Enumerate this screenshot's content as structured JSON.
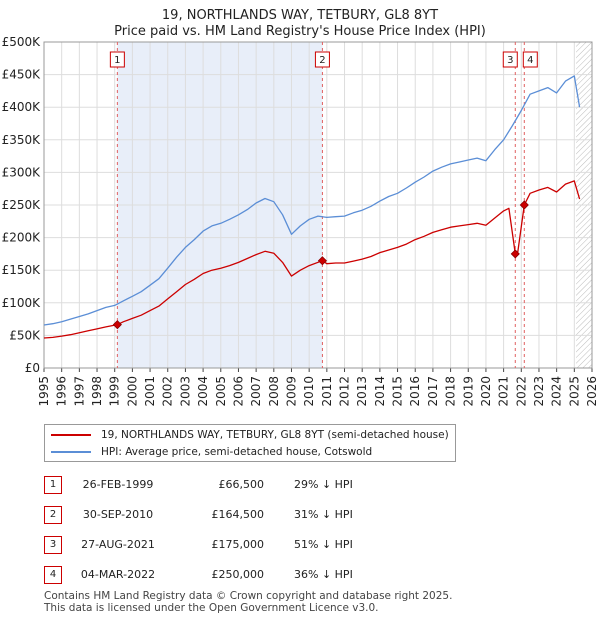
{
  "title": "19, NORTHLANDS WAY, TETBURY, GL8 8YT",
  "subtitle": "Price paid vs. HM Land Registry's House Price Index (HPI)",
  "legend": {
    "property_label": "19, NORTHLANDS WAY, TETBURY, GL8 8YT (semi-detached house)",
    "hpi_label": "HPI: Average price, semi-detached house, Cotswold"
  },
  "sales": [
    {
      "num": "1",
      "date": "26-FEB-1999",
      "price": "£66,500",
      "hpi": "29% ↓ HPI"
    },
    {
      "num": "2",
      "date": "30-SEP-2010",
      "price": "£164,500",
      "hpi": "31% ↓ HPI"
    },
    {
      "num": "3",
      "date": "27-AUG-2021",
      "price": "£175,000",
      "hpi": "51% ↓ HPI"
    },
    {
      "num": "4",
      "date": "04-MAR-2022",
      "price": "£250,000",
      "hpi": "36% ↓ HPI"
    }
  ],
  "footer": {
    "line1": "Contains HM Land Registry data © Crown copyright and database right 2025.",
    "line2": "This data is licensed under the Open Government Licence v3.0."
  },
  "colors": {
    "property": "#cc0000",
    "hpi": "#5b8ed6",
    "shade": "#e8eef9",
    "grid": "#dddddd",
    "hatch": "#bbbbbb"
  },
  "chart_data": {
    "type": "line",
    "title": "19, NORTHLANDS WAY, TETBURY, GL8 8YT",
    "subtitle": "Price paid vs. HM Land Registry's House Price Index (HPI)",
    "xlabel": "",
    "ylabel": "",
    "xlim": [
      1995,
      2026
    ],
    "ylim": [
      0,
      500000
    ],
    "x_ticks": [
      1995,
      1996,
      1997,
      1998,
      1999,
      2000,
      2001,
      2002,
      2003,
      2004,
      2005,
      2006,
      2007,
      2008,
      2009,
      2010,
      2011,
      2012,
      2013,
      2014,
      2015,
      2016,
      2017,
      2018,
      2019,
      2020,
      2021,
      2022,
      2023,
      2024,
      2025,
      2026
    ],
    "y_ticks": [
      0,
      50000,
      100000,
      150000,
      200000,
      250000,
      300000,
      350000,
      400000,
      450000,
      500000
    ],
    "y_tick_labels": [
      "£0",
      "£50K",
      "£100K",
      "£150K",
      "£200K",
      "£250K",
      "£300K",
      "£350K",
      "£400K",
      "£450K",
      "£500K"
    ],
    "grid": true,
    "shaded_ranges": [
      [
        1999.15,
        2010.75
      ]
    ],
    "hatched_from": 2025.1,
    "series": [
      {
        "name": "HPI: Average price, semi-detached house, Cotswold",
        "color": "#5b8ed6",
        "x": [
          1995,
          1995.5,
          1996,
          1996.5,
          1997,
          1997.5,
          1998,
          1998.5,
          1999,
          1999.5,
          2000,
          2000.5,
          2001,
          2001.5,
          2002,
          2002.5,
          2003,
          2003.5,
          2004,
          2004.5,
          2005,
          2005.5,
          2006,
          2006.5,
          2007,
          2007.5,
          2008,
          2008.5,
          2009,
          2009.5,
          2010,
          2010.5,
          2011,
          2011.5,
          2012,
          2012.5,
          2013,
          2013.5,
          2014,
          2014.5,
          2015,
          2015.5,
          2016,
          2016.5,
          2017,
          2017.5,
          2018,
          2018.5,
          2019,
          2019.5,
          2020,
          2020.5,
          2021,
          2021.5,
          2022,
          2022.5,
          2023,
          2023.5,
          2024,
          2024.5,
          2025,
          2025.3
        ],
        "values": [
          66000,
          68000,
          71000,
          75000,
          79000,
          83000,
          88000,
          93000,
          96000,
          103000,
          110000,
          117000,
          127000,
          137000,
          153000,
          170000,
          185000,
          197000,
          210000,
          218000,
          222000,
          228000,
          235000,
          243000,
          253000,
          260000,
          255000,
          235000,
          205000,
          218000,
          228000,
          233000,
          231000,
          232000,
          233000,
          238000,
          242000,
          248000,
          256000,
          263000,
          268000,
          276000,
          285000,
          293000,
          302000,
          308000,
          313000,
          316000,
          319000,
          322000,
          318000,
          335000,
          350000,
          372000,
          395000,
          420000,
          425000,
          430000,
          422000,
          440000,
          448000,
          400000
        ]
      },
      {
        "name": "19, NORTHLANDS WAY, TETBURY, GL8 8YT (semi-detached house)",
        "color": "#cc0000",
        "x": [
          1995,
          1995.5,
          1996,
          1996.5,
          1997,
          1997.5,
          1998,
          1998.5,
          1999.15,
          1999.5,
          2000,
          2000.5,
          2001,
          2001.5,
          2002,
          2002.5,
          2003,
          2003.5,
          2004,
          2004.5,
          2005,
          2005.5,
          2006,
          2006.5,
          2007,
          2007.5,
          2008,
          2008.5,
          2009,
          2009.5,
          2010,
          2010.75,
          2011,
          2011.5,
          2012,
          2012.5,
          2013,
          2013.5,
          2014,
          2014.5,
          2015,
          2015.5,
          2016,
          2016.5,
          2017,
          2017.5,
          2018,
          2018.5,
          2019,
          2019.5,
          2020,
          2020.5,
          2021,
          2021.3,
          2021.66,
          2021.8,
          2022.17,
          2022.5,
          2023,
          2023.5,
          2024,
          2024.5,
          2025,
          2025.3
        ],
        "values": [
          46000,
          47000,
          49000,
          51000,
          54000,
          57000,
          60000,
          63000,
          66500,
          71000,
          76000,
          81000,
          88000,
          95000,
          106000,
          117000,
          128000,
          136000,
          145000,
          150000,
          153000,
          157000,
          162000,
          168000,
          174000,
          179000,
          176000,
          162000,
          141000,
          150000,
          157000,
          164500,
          160000,
          161000,
          161000,
          164000,
          167000,
          171000,
          177000,
          181000,
          185000,
          190000,
          197000,
          202000,
          208000,
          212000,
          216000,
          218000,
          220000,
          222000,
          219000,
          230000,
          241000,
          245000,
          175000,
          178000,
          250000,
          268000,
          273000,
          277000,
          270000,
          282000,
          287000,
          259000
        ]
      }
    ],
    "sale_markers": [
      {
        "label": "1",
        "x": 1999.15,
        "y": 66500
      },
      {
        "label": "2",
        "x": 2010.75,
        "y": 164500
      },
      {
        "label": "3",
        "x": 2021.66,
        "y": 175000
      },
      {
        "label": "4",
        "x": 2022.17,
        "y": 250000
      }
    ]
  }
}
